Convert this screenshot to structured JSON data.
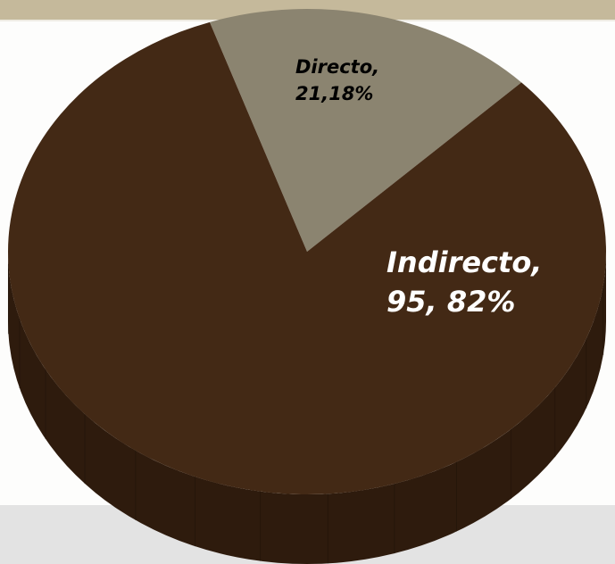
{
  "chart_data": {
    "type": "pie",
    "title": "",
    "slices": [
      {
        "label": "Directo",
        "value": 18,
        "label_lines": [
          "Directo,",
          "21,18%"
        ],
        "color": "#8b8470"
      },
      {
        "label": "Indirecto",
        "value": 82,
        "label_lines": [
          "Indirecto,",
          "95, 82%"
        ],
        "color": "#432915"
      }
    ],
    "style": "3d",
    "side_color": "#2e1b0d",
    "legend": "none"
  },
  "colors": {
    "top_band": "#c5b99b",
    "bottom_band": "#e3e3e3",
    "label_dark": "#000000",
    "label_light": "#ffffff"
  }
}
